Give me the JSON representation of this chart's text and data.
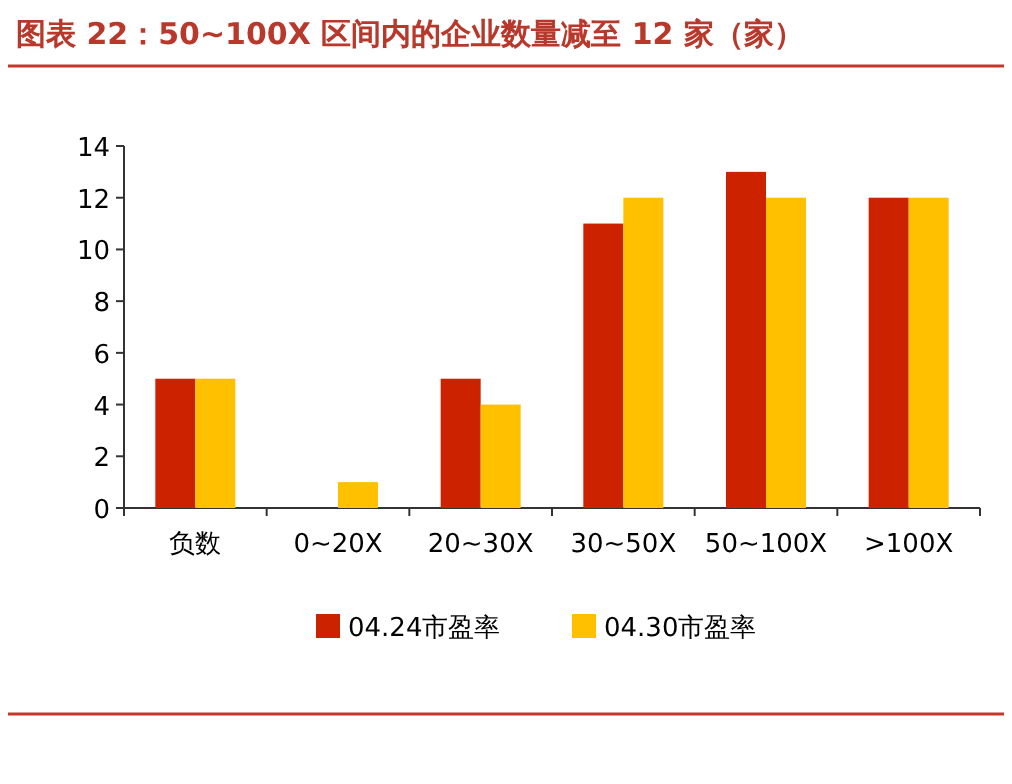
{
  "chart_data": {
    "type": "bar",
    "title": "图表 22：50~100X 区间内的企业数量减至 12 家（家）",
    "categories": [
      "负数",
      "0~20X",
      "20~30X",
      "30~50X",
      "50~100X",
      ">100X"
    ],
    "series": [
      {
        "name": "04.24市盈率",
        "color": "#cc2200",
        "values": [
          5,
          0,
          5,
          11,
          13,
          12
        ]
      },
      {
        "name": "04.30市盈率",
        "color": "#ffc000",
        "values": [
          5,
          1,
          4,
          12,
          12,
          12
        ]
      }
    ],
    "ylim": [
      0,
      14
    ],
    "yticks": [
      0,
      2,
      4,
      6,
      8,
      10,
      12,
      14
    ],
    "legend": "bottom"
  }
}
